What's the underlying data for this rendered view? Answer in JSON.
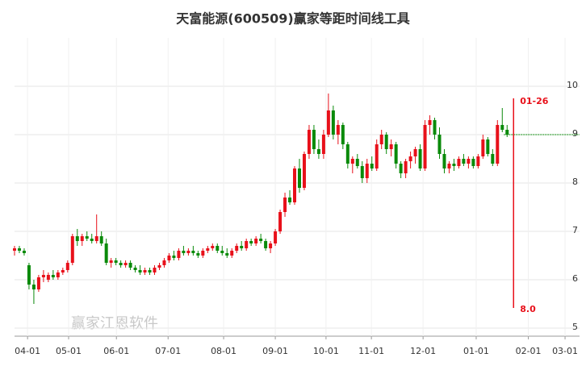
{
  "chart_data": {
    "type": "candlestick",
    "title": "天富能源(600509)赢家等距时间线工具",
    "up_color": "#e8101a",
    "down_color": "#0a8a0a",
    "candles": [
      [
        6.6,
        6.7,
        6.5,
        6.65
      ],
      [
        6.65,
        6.7,
        6.55,
        6.6
      ],
      [
        6.6,
        6.65,
        6.5,
        6.55
      ],
      [
        6.3,
        6.35,
        5.8,
        5.9
      ],
      [
        5.9,
        6.0,
        5.5,
        5.8
      ],
      [
        5.8,
        6.1,
        5.75,
        6.05
      ],
      [
        6.05,
        6.2,
        5.95,
        6.1
      ],
      [
        6.0,
        6.15,
        5.95,
        6.1
      ],
      [
        6.1,
        6.2,
        6.0,
        6.05
      ],
      [
        6.05,
        6.2,
        6.0,
        6.15
      ],
      [
        6.15,
        6.25,
        6.1,
        6.2
      ],
      [
        6.2,
        6.4,
        6.15,
        6.35
      ],
      [
        6.35,
        6.95,
        6.3,
        6.9
      ],
      [
        6.9,
        7.05,
        6.7,
        6.8
      ],
      [
        6.8,
        6.95,
        6.7,
        6.9
      ],
      [
        6.9,
        7.0,
        6.8,
        6.85
      ],
      [
        6.85,
        6.95,
        6.75,
        6.8
      ],
      [
        6.8,
        7.35,
        6.75,
        6.9
      ],
      [
        6.9,
        7.0,
        6.7,
        6.75
      ],
      [
        6.75,
        6.85,
        6.3,
        6.35
      ],
      [
        6.35,
        6.45,
        6.25,
        6.4
      ],
      [
        6.4,
        6.45,
        6.3,
        6.35
      ],
      [
        6.35,
        6.4,
        6.25,
        6.3
      ],
      [
        6.3,
        6.4,
        6.25,
        6.35
      ],
      [
        6.35,
        6.4,
        6.2,
        6.25
      ],
      [
        6.25,
        6.3,
        6.15,
        6.2
      ],
      [
        6.2,
        6.3,
        6.1,
        6.15
      ],
      [
        6.15,
        6.25,
        6.1,
        6.2
      ],
      [
        6.2,
        6.25,
        6.1,
        6.15
      ],
      [
        6.15,
        6.3,
        6.1,
        6.25
      ],
      [
        6.25,
        6.35,
        6.2,
        6.3
      ],
      [
        6.3,
        6.45,
        6.25,
        6.4
      ],
      [
        6.4,
        6.55,
        6.35,
        6.5
      ],
      [
        6.5,
        6.6,
        6.4,
        6.45
      ],
      [
        6.45,
        6.65,
        6.4,
        6.6
      ],
      [
        6.6,
        6.7,
        6.5,
        6.55
      ],
      [
        6.55,
        6.65,
        6.5,
        6.6
      ],
      [
        6.6,
        6.7,
        6.5,
        6.55
      ],
      [
        6.55,
        6.6,
        6.45,
        6.5
      ],
      [
        6.5,
        6.65,
        6.45,
        6.6
      ],
      [
        6.6,
        6.7,
        6.55,
        6.65
      ],
      [
        6.65,
        6.75,
        6.6,
        6.7
      ],
      [
        6.7,
        6.75,
        6.55,
        6.6
      ],
      [
        6.6,
        6.7,
        6.5,
        6.55
      ],
      [
        6.55,
        6.65,
        6.45,
        6.5
      ],
      [
        6.5,
        6.65,
        6.45,
        6.6
      ],
      [
        6.6,
        6.75,
        6.55,
        6.7
      ],
      [
        6.7,
        6.8,
        6.6,
        6.65
      ],
      [
        6.65,
        6.85,
        6.6,
        6.8
      ],
      [
        6.8,
        6.85,
        6.7,
        6.75
      ],
      [
        6.75,
        6.9,
        6.7,
        6.85
      ],
      [
        6.85,
        6.95,
        6.75,
        6.8
      ],
      [
        6.8,
        6.85,
        6.6,
        6.65
      ],
      [
        6.65,
        6.8,
        6.55,
        6.75
      ],
      [
        6.75,
        7.05,
        6.7,
        7.0
      ],
      [
        7.0,
        7.45,
        6.95,
        7.4
      ],
      [
        7.4,
        7.8,
        7.3,
        7.7
      ],
      [
        7.7,
        7.85,
        7.55,
        7.6
      ],
      [
        7.6,
        8.35,
        7.55,
        8.3
      ],
      [
        8.3,
        8.5,
        7.8,
        7.9
      ],
      [
        7.9,
        8.65,
        7.85,
        8.6
      ],
      [
        8.6,
        9.2,
        8.5,
        9.1
      ],
      [
        9.1,
        9.2,
        8.6,
        8.7
      ],
      [
        8.7,
        8.9,
        8.5,
        8.6
      ],
      [
        8.6,
        9.1,
        8.5,
        9.0
      ],
      [
        9.0,
        9.85,
        8.95,
        9.5
      ],
      [
        9.5,
        9.6,
        8.9,
        9.0
      ],
      [
        9.0,
        9.3,
        8.8,
        9.2
      ],
      [
        9.2,
        9.25,
        8.7,
        8.8
      ],
      [
        8.8,
        8.85,
        8.3,
        8.4
      ],
      [
        8.4,
        8.55,
        8.2,
        8.5
      ],
      [
        8.5,
        8.6,
        8.3,
        8.35
      ],
      [
        8.35,
        8.45,
        8.0,
        8.1
      ],
      [
        8.1,
        8.5,
        8.0,
        8.4
      ],
      [
        8.4,
        8.55,
        8.25,
        8.3
      ],
      [
        8.3,
        8.9,
        8.25,
        8.8
      ],
      [
        8.8,
        9.1,
        8.7,
        9.0
      ],
      [
        9.0,
        9.05,
        8.6,
        8.7
      ],
      [
        8.7,
        8.9,
        8.55,
        8.8
      ],
      [
        8.8,
        8.85,
        8.3,
        8.4
      ],
      [
        8.4,
        8.45,
        8.1,
        8.2
      ],
      [
        8.2,
        8.5,
        8.1,
        8.45
      ],
      [
        8.45,
        8.65,
        8.3,
        8.55
      ],
      [
        8.55,
        8.75,
        8.4,
        8.7
      ],
      [
        8.7,
        8.8,
        8.25,
        8.3
      ],
      [
        8.3,
        9.3,
        8.25,
        9.2
      ],
      [
        9.2,
        9.4,
        9.0,
        9.3
      ],
      [
        9.3,
        9.35,
        8.9,
        9.0
      ],
      [
        9.0,
        9.15,
        8.5,
        8.6
      ],
      [
        8.6,
        8.7,
        8.2,
        8.3
      ],
      [
        8.3,
        8.45,
        8.2,
        8.4
      ],
      [
        8.4,
        8.5,
        8.25,
        8.35
      ],
      [
        8.35,
        8.55,
        8.3,
        8.5
      ],
      [
        8.5,
        8.6,
        8.35,
        8.4
      ],
      [
        8.4,
        8.55,
        8.3,
        8.5
      ],
      [
        8.5,
        8.55,
        8.3,
        8.35
      ],
      [
        8.35,
        8.6,
        8.3,
        8.55
      ],
      [
        8.55,
        9.0,
        8.5,
        8.9
      ],
      [
        8.9,
        8.95,
        8.55,
        8.6
      ],
      [
        8.6,
        8.7,
        8.35,
        8.4
      ],
      [
        8.4,
        9.3,
        8.35,
        9.2
      ],
      [
        9.2,
        9.55,
        9.05,
        9.1
      ],
      [
        9.1,
        9.2,
        8.95,
        9.0
      ]
    ],
    "xlim": [
      0,
      117
    ],
    "xticks": [
      {
        "value": 2.7,
        "label": "04-01"
      },
      {
        "value": 11.2,
        "label": "05-01"
      },
      {
        "value": 21.1,
        "label": "06-01"
      },
      {
        "value": 31.8,
        "label": "07-01"
      },
      {
        "value": 43.3,
        "label": "08-01"
      },
      {
        "value": 54.0,
        "label": "09-01"
      },
      {
        "value": 64.5,
        "label": "10-01"
      },
      {
        "value": 73.9,
        "label": "11-01"
      },
      {
        "value": 84.6,
        "label": "12-01"
      },
      {
        "value": 95.6,
        "label": "01-01"
      },
      {
        "value": 106.4,
        "label": "02-01"
      },
      {
        "value": 114.0,
        "label": "03-01"
      }
    ],
    "ylim": [
      4.85,
      11.0
    ],
    "yticks": [
      5,
      6,
      7,
      8,
      9,
      10
    ],
    "price_line": 9.0,
    "price_line_color": "#0a8a0a",
    "marker_top_label": "01-26",
    "marker_bottom_label": "8.0",
    "marker_color": "#e8101a",
    "watermark": "赢家江恩软件"
  }
}
